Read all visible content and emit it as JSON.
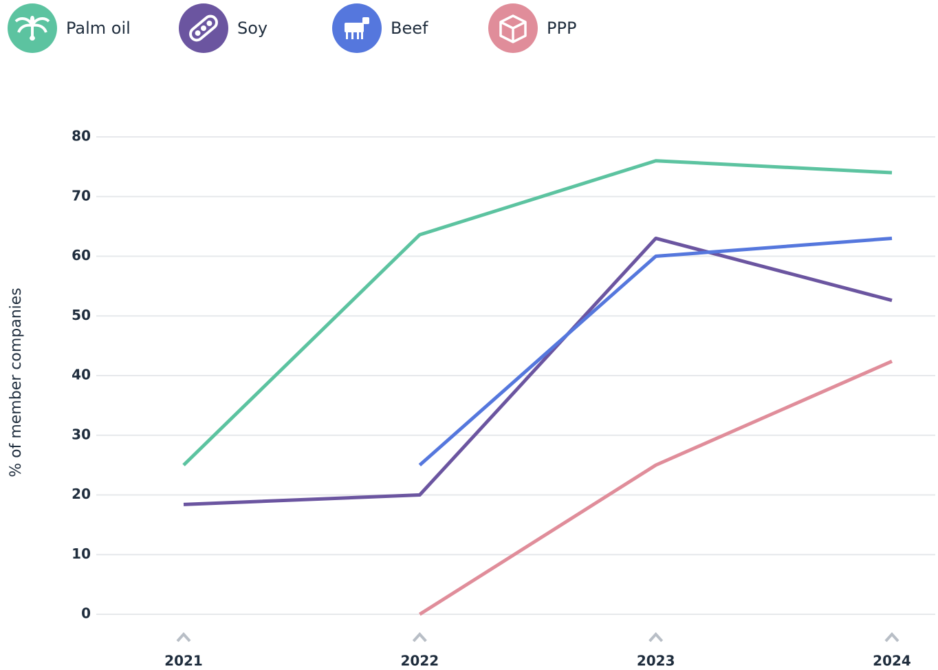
{
  "chart_data": {
    "type": "line",
    "y_label": "% of member companies",
    "categories": [
      "2021",
      "2022",
      "2023",
      "2024"
    ],
    "series": [
      {
        "name": "Palm oil",
        "color": "#5cc3a0",
        "values": [
          25,
          63.6,
          76,
          74
        ]
      },
      {
        "name": "Soy",
        "color": "#6b55a0",
        "values": [
          18.4,
          20,
          63,
          52.6
        ]
      },
      {
        "name": "Beef",
        "color": "#5577dd",
        "values": [
          null,
          25,
          60,
          63
        ]
      },
      {
        "name": "PPP",
        "color": "#e08d9a",
        "values": [
          null,
          0,
          25,
          42.4
        ]
      }
    ],
    "ylim": [
      0,
      80
    ],
    "yticks": [
      0,
      10,
      20,
      30,
      40,
      50,
      60,
      70,
      80
    ],
    "grid": true
  }
}
